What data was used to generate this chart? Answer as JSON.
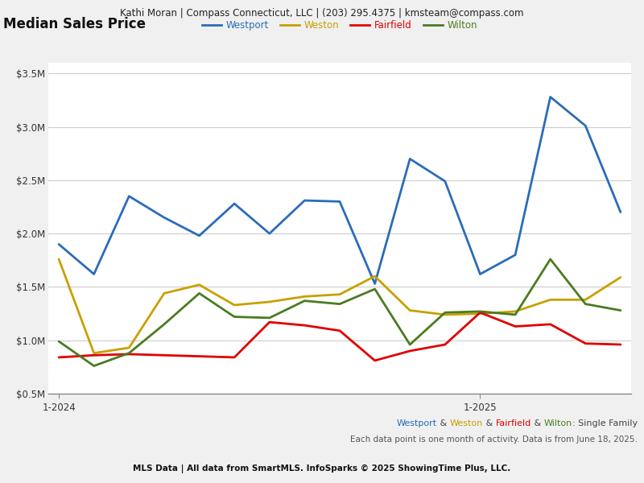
{
  "header": "Kathi Moran | Compass Connecticut, LLC | (203) 295.4375 | kmsteam@compass.com",
  "title": "Median Sales Price",
  "footer_line1_parts": [
    {
      "text": "Westport",
      "color": "#1f6eb5"
    },
    {
      "text": " & ",
      "color": "#444444"
    },
    {
      "text": "Weston",
      "color": "#c8a000"
    },
    {
      "text": " & ",
      "color": "#444444"
    },
    {
      "text": "Fairfield",
      "color": "#e00000"
    },
    {
      "text": " & ",
      "color": "#444444"
    },
    {
      "text": "Wilton",
      "color": "#4a7c20"
    },
    {
      "text": ": Single Family",
      "color": "#444444"
    }
  ],
  "footer_line2": "Each data point is one month of activity. Data is from June 18, 2025.",
  "footer_line3": "MLS Data | All data from SmartMLS. InfoSparks © 2025 ShowingTime Plus, LLC.",
  "series": [
    {
      "name": "Westport",
      "color": "#2b6cb8",
      "linewidth": 2.0,
      "values": [
        1900000,
        1620000,
        2350000,
        2150000,
        1980000,
        2280000,
        2000000,
        2310000,
        2300000,
        1530000,
        2700000,
        2490000,
        1620000,
        1800000,
        3280000,
        3010000,
        2200000
      ]
    },
    {
      "name": "Weston",
      "color": "#c8a000",
      "linewidth": 2.0,
      "values": [
        1760000,
        880000,
        930000,
        1440000,
        1520000,
        1330000,
        1360000,
        1410000,
        1430000,
        1600000,
        1280000,
        1240000,
        1250000,
        1270000,
        1380000,
        1380000,
        1590000
      ]
    },
    {
      "name": "Fairfield",
      "color": "#e00000",
      "linewidth": 2.0,
      "values": [
        840000,
        860000,
        870000,
        860000,
        850000,
        840000,
        1170000,
        1140000,
        1090000,
        810000,
        900000,
        960000,
        1260000,
        1130000,
        1150000,
        970000,
        960000
      ]
    },
    {
      "name": "Wilton",
      "color": "#4a7c20",
      "linewidth": 2.0,
      "values": [
        990000,
        760000,
        880000,
        1150000,
        1440000,
        1220000,
        1210000,
        1370000,
        1340000,
        1480000,
        960000,
        1260000,
        1270000,
        1240000,
        1760000,
        1340000,
        1280000
      ]
    }
  ],
  "ylim": [
    500000,
    3600000
  ],
  "yticks": [
    500000,
    1000000,
    1500000,
    2000000,
    2500000,
    3000000,
    3500000
  ],
  "ytick_labels": [
    "$0.5M",
    "$1.0M",
    "$1.5M",
    "$2.0M",
    "$2.5M",
    "$3.0M",
    "$3.5M"
  ],
  "background_color": "#f0f0f0",
  "plot_bg_color": "#ffffff",
  "grid_color": "#cccccc",
  "header_bg_color": "#e0e0e0"
}
